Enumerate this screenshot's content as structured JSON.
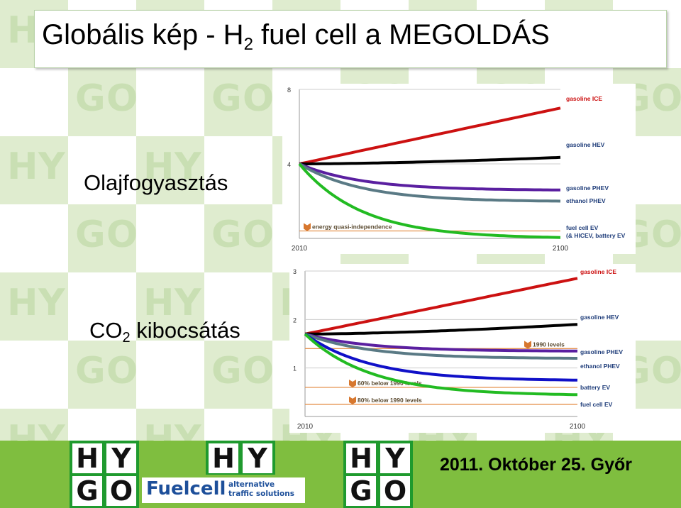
{
  "title": {
    "pre": "Globális kép - ",
    "h": "H",
    "sub": "2",
    "post": " fuel cell a MEGOLDÁS"
  },
  "labels": {
    "oil": "Olajfogyasztás",
    "co2_pre": "CO",
    "co2_sub": "2",
    "co2_post": " kibocsátás"
  },
  "background": {
    "watermark_letters": [
      "H",
      "Y",
      "G",
      "O"
    ],
    "color_light": "#dfeccf",
    "color_dark": "#c9dfb3"
  },
  "colors": {
    "red": "#cc1111",
    "black": "#000000",
    "purple": "#5a1fa0",
    "slate": "#5a7a85",
    "blue": "#1010c8",
    "green": "#22bb22",
    "orange_ref": "#e59350",
    "label_red": "#cc1111",
    "label_navy": "#1f3d7a"
  },
  "chart_data": [
    {
      "type": "line",
      "x": [
        2010,
        2100
      ],
      "xlabel": "",
      "ylabel": "",
      "x_ticks": [
        "2010",
        "2100"
      ],
      "y_ticks": [
        "8",
        "4"
      ],
      "ylim": [
        0,
        8
      ],
      "series": [
        {
          "name": "gasoline ICE",
          "color": "#cc1111",
          "end": 7.0,
          "shape": "linear"
        },
        {
          "name": "gasoline HEV",
          "color": "#000000",
          "end": 4.35,
          "shape": "rise"
        },
        {
          "name": "gasoline PHEV",
          "color": "#5a1fa0",
          "end": 2.6,
          "shape": "decline"
        },
        {
          "name": "ethanol PHEV",
          "color": "#5a7a85",
          "end": 2.0,
          "shape": "decline"
        },
        {
          "name": "fuel cell EV (& HICEV, battery EV",
          "color": "#22bb22",
          "end": 0.05,
          "shape": "decline"
        }
      ],
      "start": 4.0,
      "reference_lines": [
        {
          "label": "energy quasi-independence",
          "value": 0.4
        }
      ]
    },
    {
      "type": "line",
      "x": [
        2010,
        2100
      ],
      "xlabel": "",
      "ylabel": "",
      "x_ticks": [
        "2010",
        "2100"
      ],
      "y_ticks": [
        "3",
        "2",
        "1"
      ],
      "ylim": [
        0,
        3
      ],
      "series": [
        {
          "name": "gasoline ICE",
          "color": "#cc1111",
          "end": 2.85,
          "shape": "linear"
        },
        {
          "name": "gasoline HEV",
          "color": "#000000",
          "end": 1.9,
          "shape": "rise"
        },
        {
          "name": "gasoline PHEV",
          "color": "#5a1fa0",
          "end": 1.35,
          "shape": "decline"
        },
        {
          "name": "ethanol PHEV",
          "color": "#5a7a85",
          "end": 1.2,
          "shape": "decline"
        },
        {
          "name": "battery EV",
          "color": "#1010c8",
          "end": 0.75,
          "shape": "decline"
        },
        {
          "name": "fuel cell EV",
          "color": "#22bb22",
          "end": 0.45,
          "shape": "decline"
        }
      ],
      "start": 1.7,
      "reference_lines": [
        {
          "label": "1990 levels",
          "value": 1.4
        },
        {
          "label": "60% below 1990 levels",
          "value": 0.6
        },
        {
          "label": "80% below 1990 levels",
          "value": 0.25
        }
      ]
    }
  ],
  "footer": {
    "logo_letters": [
      "H",
      "Y",
      "G",
      "O"
    ],
    "brand": "Fuelcell",
    "tagline_1": "alternative",
    "tagline_2": "traffic solutions",
    "date": "2011. Október 25. Győr"
  }
}
